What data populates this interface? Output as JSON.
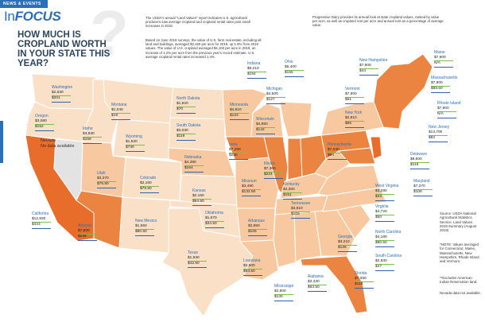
{
  "header": {
    "section_tag": "NEWS & EVENTS",
    "brand_prefix": "In",
    "brand_suffix": "FOCUS",
    "headline": "HOW MUCH IS CROPLAND WORTH IN YOUR STATE THIS YEAR?",
    "question_mark": "?"
  },
  "intro": {
    "p1": "The USDA's annual \"Land Values\" report indicates U.S. agricultural producers saw average cropland and cropland rental rates post small increases in 2019.",
    "p2": "Based on June 2019 surveys, the value of U.S. farm real estate, including all land and buildings, averaged $3,160 per acre for 2019, up 1.9% from 2018 values. The value of U.S. cropland averaged $4,100 per acre in 2019, an increase of 1.2% per acre from the previous year's record estimate. U.S. average cropland rental rates increased 1.4%.",
    "p3": "Progressive Dairy provides its annual look at state cropland values, ranked by value per acre, as well as cropland rent per acre and annual rent as a percentage of average value."
  },
  "colors": {
    "brand_blue": "#2b6fb8",
    "headline_navy": "#2e4560",
    "bar_green": "#7cc04b",
    "bar_blue": "#2f64ad",
    "bar_purple": "#8e3b96",
    "shade_lightest": "#fbe0c8",
    "shade_light": "#f8c9a0",
    "shade_mid": "#f3a46a",
    "shade_dark": "#ec8441",
    "shade_darkest": "#e86c2a",
    "no_data": "#e3e3e3"
  },
  "states": [
    {
      "name": "Washington",
      "value": "$2,630",
      "rent": "$201"
    },
    {
      "name": "Oregon",
      "value": "$3,080",
      "rent": "$152"
    },
    {
      "name": "California",
      "value": "$12,830",
      "rent": "$423"
    },
    {
      "name": "Idaho",
      "value": "$3,930",
      "rent": "$159"
    },
    {
      "name": "Montana",
      "value": "$1,040",
      "rent": "$18"
    },
    {
      "name": "Wyoming",
      "value": "$1,520",
      "rent": "$730"
    },
    {
      "name": "Utah",
      "value": "$3,370",
      "rent": "$75.50"
    },
    {
      "name": "Arizona",
      "value": "$7,600",
      "rent": "$249"
    },
    {
      "name": "Colorado",
      "value": "$2,160",
      "rent": "$79.50"
    },
    {
      "name": "New Mexico",
      "value": "$1,550",
      "rent": "$80.50"
    },
    {
      "name": "North Dakota",
      "value": "$1,920",
      "rent": "$70"
    },
    {
      "name": "South Dakota",
      "value": "$3,030",
      "rent": "$119"
    },
    {
      "name": "Nebraska",
      "value": "$4,390",
      "rent": "$164"
    },
    {
      "name": "Kansas",
      "value": "$2,160",
      "rent": "$64.50"
    },
    {
      "name": "Oklahoma",
      "value": "$1,670",
      "rent": "$34.50"
    },
    {
      "name": "Texas",
      "value": "$1,930",
      "rent": "$42.50"
    },
    {
      "name": "Minnesota",
      "value": "$4,810",
      "rent": "$123"
    },
    {
      "name": "Iowa",
      "value": "$7,260",
      "rent": "$230"
    },
    {
      "name": "Missouri",
      "value": "$3,490",
      "rent": "$132.50"
    },
    {
      "name": "Arkansas",
      "value": "$2,850",
      "rent": "$105"
    },
    {
      "name": "Louisiana",
      "value": "$2,600",
      "rent": "$94.50"
    },
    {
      "name": "Wisconsin",
      "value": "$4,850",
      "rent": "$142"
    },
    {
      "name": "Illinois",
      "value": "$7,300",
      "rent": "$224"
    },
    {
      "name": "Michigan",
      "value": "$4,500",
      "rent": "$127"
    },
    {
      "name": "Indiana",
      "value": "$6,210",
      "rent": "$194"
    },
    {
      "name": "Ohio",
      "value": "$6,400",
      "rent": "$155"
    },
    {
      "name": "Kentucky",
      "value": "$4,300",
      "rent": "$151"
    },
    {
      "name": "Tennessee",
      "value": "$3,910",
      "rent": "$103"
    },
    {
      "name": "Mississippi",
      "value": "$2,800",
      "rent": "$130"
    },
    {
      "name": "Alabama",
      "value": "$3,430",
      "rent": "$63.50"
    },
    {
      "name": "Georgia",
      "value": "$3,210",
      "rent": "$126"
    },
    {
      "name": "Florida",
      "value": "$7,350",
      "rent": "$110"
    },
    {
      "name": "South Carolina",
      "value": "$2,830",
      "rent": "$47"
    },
    {
      "name": "North Carolina",
      "value": "$4,180",
      "rent": "$90.50"
    },
    {
      "name": "Virginia",
      "value": "$4,720",
      "rent": "$50"
    },
    {
      "name": "West Virginia",
      "value": "$3,280",
      "rent": "$43"
    },
    {
      "name": "Pennsylvania",
      "value": "$7,030",
      "rent": "$94"
    },
    {
      "name": "New York",
      "value": "$2,810",
      "rent": "$65"
    },
    {
      "name": "Vermont",
      "value": "$7,900",
      "rent": "$51"
    },
    {
      "name": "New Hampshire",
      "value": "$7,900",
      "rent": "$44"
    },
    {
      "name": "Maine",
      "value": "$7,900",
      "rent": "N/A"
    },
    {
      "name": "Massachusetts",
      "value": "$7,900",
      "rent": "$88.50"
    },
    {
      "name": "Rhode Island",
      "value": "$7,900",
      "rent": "N/A"
    },
    {
      "name": "New Jersey",
      "value": "$13,700",
      "rent": "$82"
    },
    {
      "name": "Delaware",
      "value": "$8,600",
      "rent": "$119"
    },
    {
      "name": "Maryland",
      "value": "$7,370",
      "rent": "$108"
    }
  ],
  "nevada": {
    "name": "Nevada",
    "status": "No data available"
  },
  "notes": {
    "source": "Source: USDA National Agricultural Statistics Service, Land Values 2019 Summary (August 2019)",
    "n1": "*NOTE: Values averaged for Connecticut, Maine, Massachusetts, New Hampshire, Rhode Island and Vermont.",
    "n2": "**Excludes American Indian Reservation land.",
    "n3": "Nevada data not available."
  }
}
